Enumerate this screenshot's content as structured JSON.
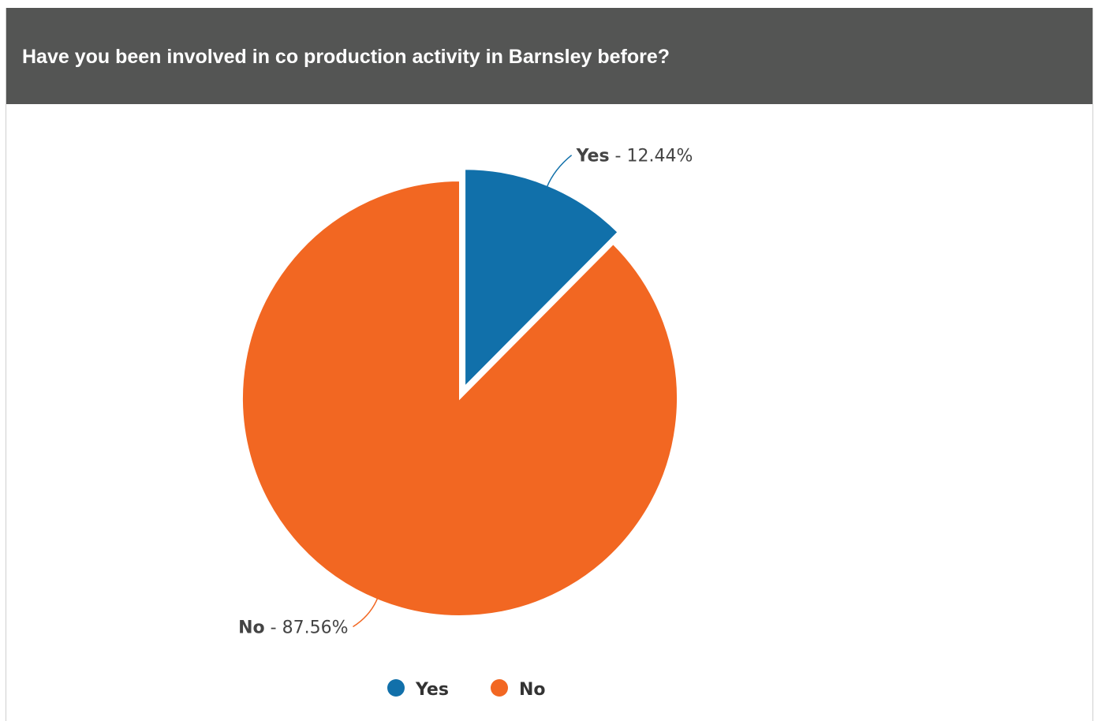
{
  "header": {
    "title": "Have you been involved in co production activity in Barnsley before?"
  },
  "chart_data": {
    "type": "pie",
    "title": "Have you been involved in co production activity in Barnsley before?",
    "slices": [
      {
        "label": "Yes",
        "value": 12.44,
        "value_text": "12.44%",
        "color": "#1170aa",
        "exploded": true
      },
      {
        "label": "No",
        "value": 87.56,
        "value_text": "87.56%",
        "color": "#f26722",
        "exploded": false
      }
    ],
    "legend": {
      "position": "bottom-center",
      "items": [
        "Yes",
        "No"
      ]
    },
    "start_angle_deg": 0,
    "direction": "clockwise"
  }
}
